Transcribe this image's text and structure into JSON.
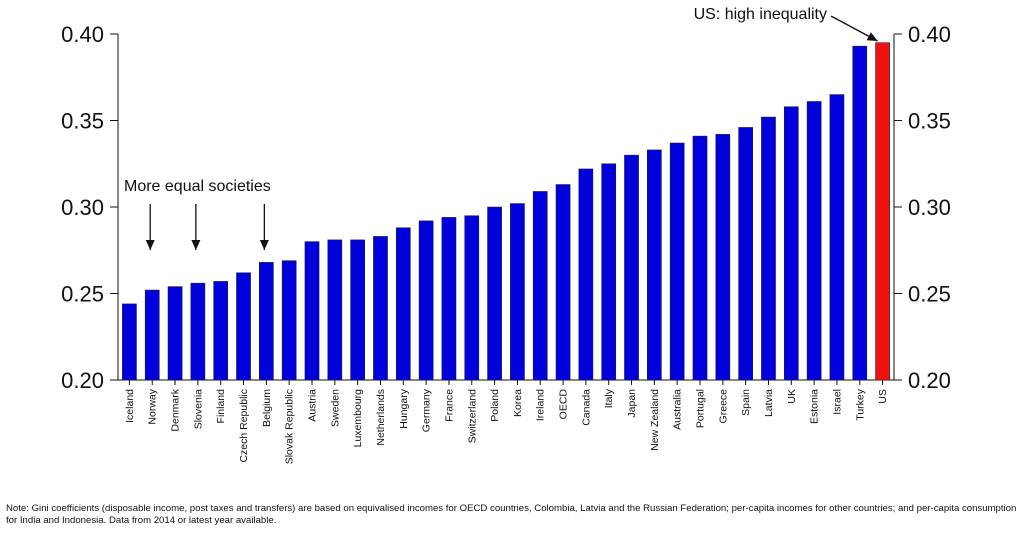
{
  "chart_data": {
    "type": "bar",
    "title": "",
    "xlabel": "",
    "ylabel": "",
    "ylim": [
      0.2,
      0.4
    ],
    "yticks": [
      "0.20",
      "0.25",
      "0.30",
      "0.35",
      "0.40"
    ],
    "ytick_values": [
      0.2,
      0.25,
      0.3,
      0.35,
      0.4
    ],
    "categories": [
      "Iceland",
      "Norway",
      "Denmark",
      "Slovenia",
      "Finland",
      "Czech Republic",
      "Belgium",
      "Slovak Republic",
      "Austria",
      "Sweden",
      "Luxembourg",
      "Netherlands",
      "Hungary",
      "Germany",
      "France",
      "Switzerland",
      "Poland",
      "Korea",
      "Ireland",
      "OECD",
      "Canada",
      "Italy",
      "Japan",
      "New Zealand",
      "Australia",
      "Portugal",
      "Greece",
      "Spain",
      "Latvia",
      "UK",
      "Estonia",
      "Israel",
      "Turkey",
      "US"
    ],
    "values": [
      0.244,
      0.252,
      0.254,
      0.256,
      0.257,
      0.262,
      0.268,
      0.269,
      0.28,
      0.281,
      0.281,
      0.283,
      0.288,
      0.292,
      0.294,
      0.295,
      0.3,
      0.302,
      0.309,
      0.313,
      0.322,
      0.325,
      0.33,
      0.333,
      0.337,
      0.341,
      0.342,
      0.346,
      0.352,
      0.358,
      0.361,
      0.365,
      0.393,
      0.395
    ],
    "colors": {
      "default": "#0000dd",
      "highlight": "#ee1111"
    },
    "highlight_category": "US",
    "annotations": {
      "high": {
        "text": "US: high inequality",
        "target": "US"
      },
      "low": {
        "text": "More equal societies",
        "targets": [
          "Norway",
          "Slovenia",
          "Belgium"
        ]
      }
    },
    "note": "Note: Gini coefficients (disposable income, post taxes and transfers) are based on equivalised incomes for OECD countries, Colombia, Latvia and the Russian Federation; per-capita incomes for other countries; and per-capita consumption for India and Indonesia. Data from 2014 or latest year available."
  }
}
